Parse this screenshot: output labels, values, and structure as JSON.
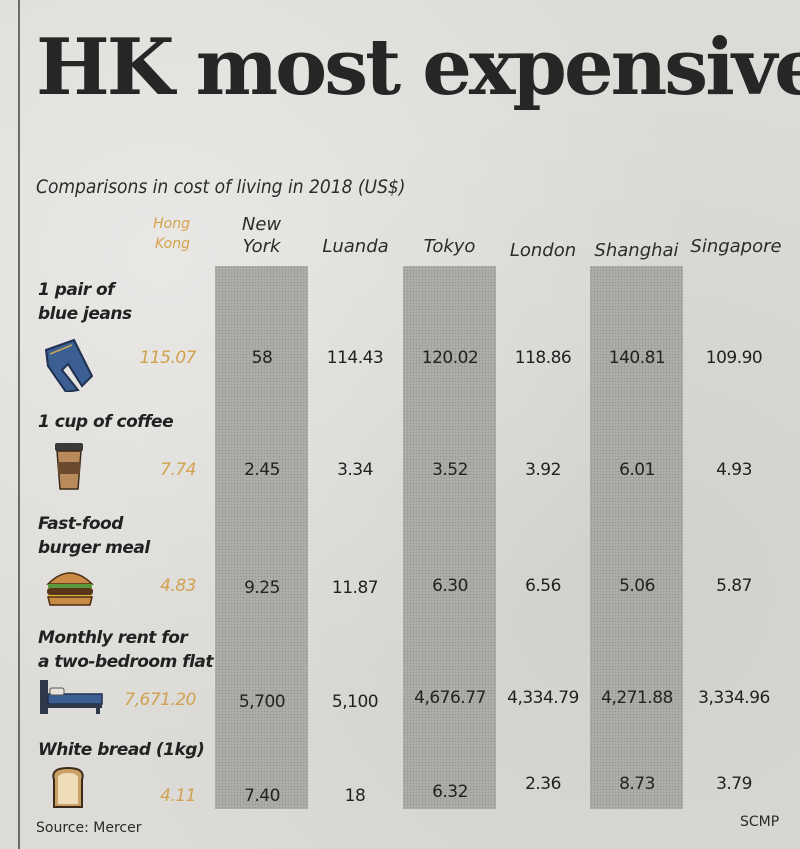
{
  "title": "HK most expensive",
  "subtitle": "Comparisons in cost of living in 2018 (US$)",
  "cities": [
    {
      "name_line1": "Hong",
      "name_line2": "Kong"
    },
    {
      "name_line1": "New",
      "name_line2": "York"
    },
    {
      "name_line1": "",
      "name_line2": "Luanda"
    },
    {
      "name_line1": "",
      "name_line2": "Tokyo"
    },
    {
      "name_line1": "",
      "name_line2": "London"
    },
    {
      "name_line1": "",
      "name_line2": "Shanghai"
    },
    {
      "name_line1": "",
      "name_line2": "Singapore"
    }
  ],
  "items": [
    {
      "label_line1": "1 pair of",
      "label_line2": "blue jeans",
      "icon": "jeans-icon",
      "values": [
        "115.07",
        "58",
        "114.43",
        "120.02",
        "118.86",
        "140.81",
        "109.90"
      ]
    },
    {
      "label_line1": "1 cup of coffee",
      "label_line2": "",
      "icon": "coffee-cup-icon",
      "values": [
        "7.74",
        "2.45",
        "3.34",
        "3.52",
        "3.92",
        "6.01",
        "4.93"
      ]
    },
    {
      "label_line1": "Fast-food",
      "label_line2": "burger meal",
      "icon": "burger-icon",
      "values": [
        "4.83",
        "9.25",
        "11.87",
        "6.30",
        "6.56",
        "5.06",
        "5.87"
      ]
    },
    {
      "label_line1": "Monthly rent for",
      "label_line2": "a two-bedroom flat",
      "icon": "bed-icon",
      "values": [
        "7,671.20",
        "5,700",
        "5,100",
        "4,676.77",
        "4,334.79",
        "4,271.88",
        "3,334.96"
      ]
    },
    {
      "label_line1": "White bread (1kg)",
      "label_line2": "",
      "icon": "bread-icon",
      "values": [
        "4.11",
        "7.40",
        "18",
        "6.32",
        "2.36",
        "8.73",
        "3.79"
      ]
    }
  ],
  "source": "Source: Mercer",
  "credit": "SCMP",
  "colors": {
    "highlight": "#d4a24a",
    "band": "#b4b2ae",
    "text": "#2a2a2a"
  }
}
